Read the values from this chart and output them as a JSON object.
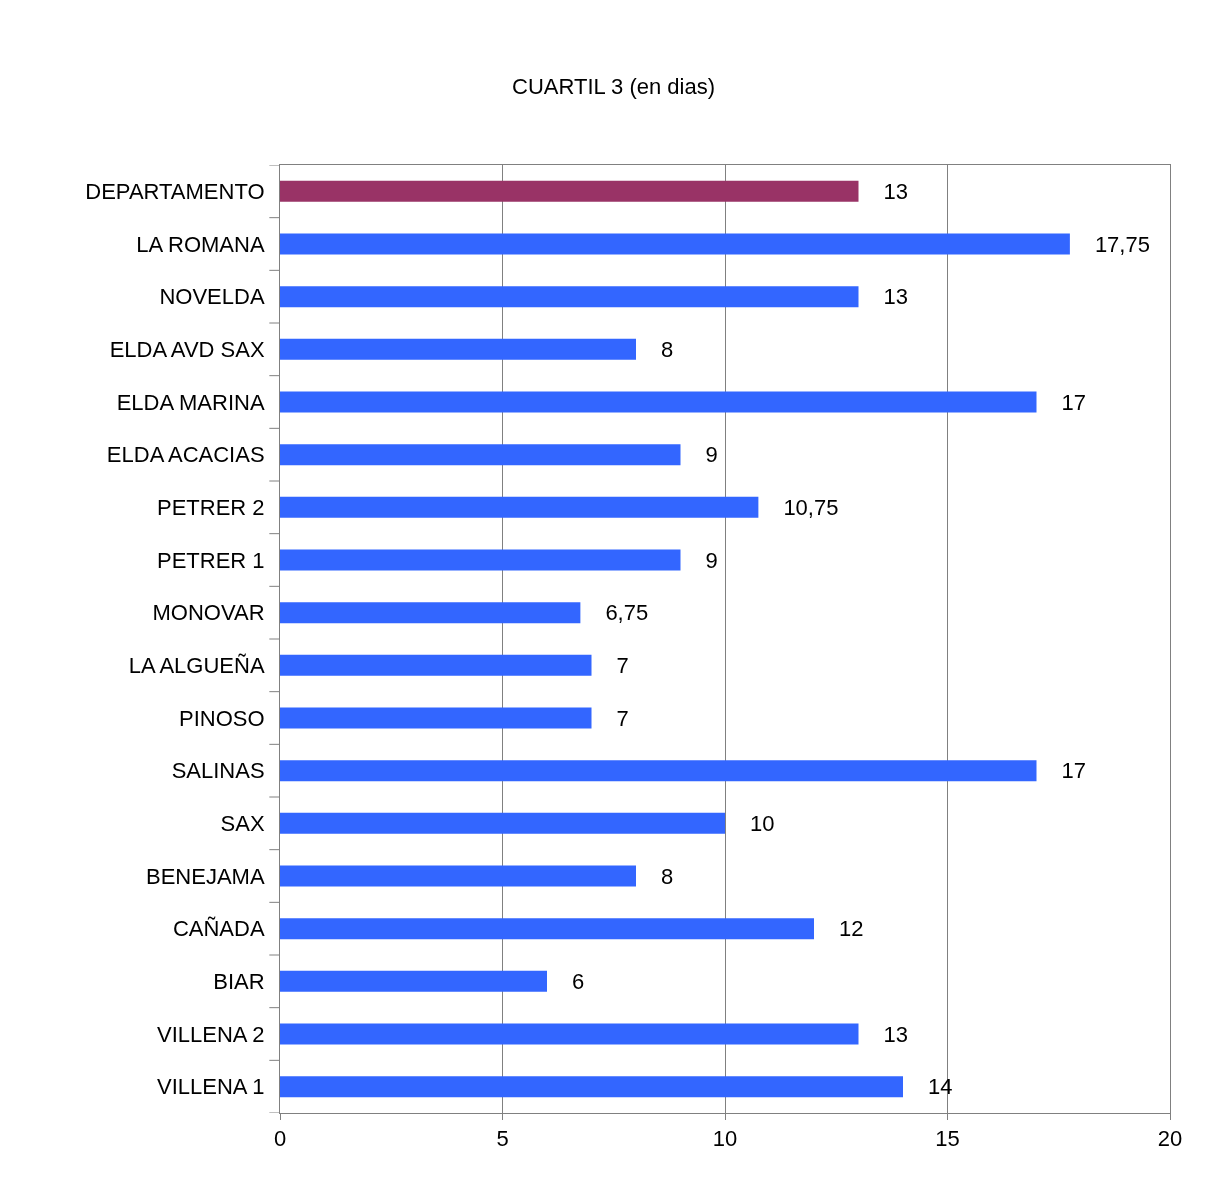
{
  "chart_data": {
    "type": "bar",
    "title": "CUARTIL 3 (en dias)",
    "orientation": "horizontal",
    "categories": [
      "DEPARTAMENTO",
      "LA ROMANA",
      "NOVELDA",
      "ELDA AVD SAX",
      "ELDA MARINA",
      "ELDA ACACIAS",
      "PETRER 2",
      "PETRER 1",
      "MONOVAR",
      "LA ALGUEÑA",
      "PINOSO",
      "SALINAS",
      "SAX",
      "BENEJAMA",
      "CAÑADA",
      "BIAR",
      "VILLENA 2",
      "VILLENA 1"
    ],
    "values": [
      13,
      17.75,
      13,
      8,
      17,
      9,
      10.75,
      9,
      6.75,
      7,
      7,
      17,
      10,
      8,
      12,
      6,
      13,
      14
    ],
    "value_labels": [
      "13",
      "17,75",
      "13",
      "8",
      "17",
      "9",
      "10,75",
      "9",
      "6,75",
      "7",
      "7",
      "17",
      "10",
      "8",
      "12",
      "6",
      "13",
      "14"
    ],
    "colors": [
      "#993366",
      "#3366ff",
      "#3366ff",
      "#3366ff",
      "#3366ff",
      "#3366ff",
      "#3366ff",
      "#3366ff",
      "#3366ff",
      "#3366ff",
      "#3366ff",
      "#3366ff",
      "#3366ff",
      "#3366ff",
      "#3366ff",
      "#3366ff",
      "#3366ff",
      "#3366ff"
    ],
    "xlim": [
      0,
      20
    ],
    "xticks": [
      0,
      5,
      10,
      15,
      20
    ],
    "grid": "x"
  }
}
